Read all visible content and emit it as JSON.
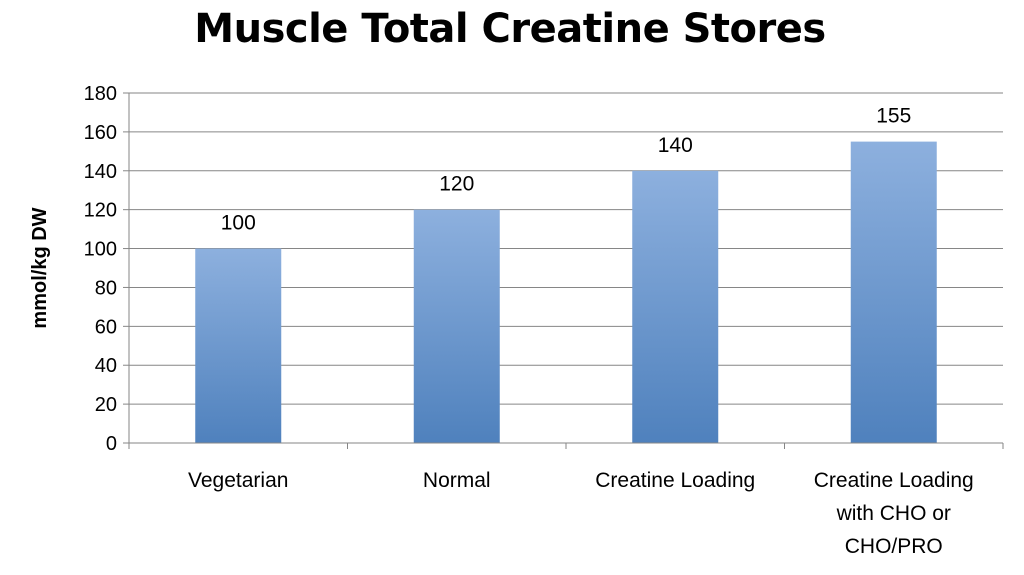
{
  "chart_data": {
    "type": "bar",
    "title": "Muscle Total Creatine Stores",
    "xlabel": "",
    "ylabel": "mmol/kg DW",
    "ylim": [
      0,
      180
    ],
    "yticks": [
      0,
      20,
      40,
      60,
      80,
      100,
      120,
      140,
      160,
      180
    ],
    "categories": [
      [
        "Vegetarian"
      ],
      [
        "Normal"
      ],
      [
        "Creatine Loading"
      ],
      [
        "Creatine Loading",
        "with CHO or",
        "CHO/PRO"
      ]
    ],
    "values": [
      100,
      120,
      140,
      155
    ],
    "data_labels": [
      "100",
      "120",
      "140",
      "155"
    ],
    "grid": true,
    "legend": "none",
    "colors": {
      "bar_top": "#8DB0DE",
      "bar_bottom": "#4F81BD",
      "gridline": "#868686",
      "axis": "#868686"
    }
  }
}
